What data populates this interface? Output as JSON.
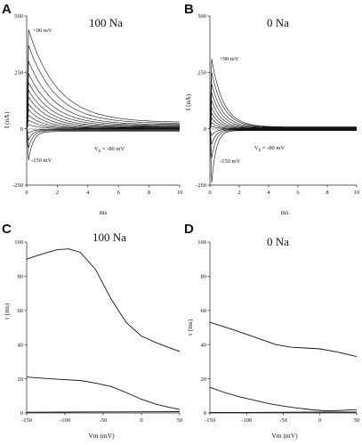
{
  "chart_data": [
    {
      "panel": "A",
      "type": "line",
      "title": "100 Na",
      "xlabel": "ms",
      "ylabel": "I (nA)",
      "xlim": [
        0,
        10
      ],
      "ylim": [
        -250,
        500
      ],
      "xticks": [
        "0",
        "2",
        "4",
        "6",
        "8",
        "10"
      ],
      "yticks": [
        "-250",
        "0",
        "250",
        "500"
      ],
      "annotations": {
        "top": "+90 mV",
        "bottom": "-150 mV",
        "hold": "V",
        "hold_sub": "h",
        "hold_rest": " = -80 mV"
      },
      "series": [
        {
          "peak": 440,
          "tau_ms": 1.9,
          "ss": 28
        },
        {
          "peak": 370,
          "tau_ms": 1.8,
          "ss": 23
        },
        {
          "peak": 300,
          "tau_ms": 1.7,
          "ss": 18
        },
        {
          "peak": 245,
          "tau_ms": 1.6,
          "ss": 15
        },
        {
          "peak": 205,
          "tau_ms": 1.5,
          "ss": 12
        },
        {
          "peak": 170,
          "tau_ms": 1.4,
          "ss": 9
        },
        {
          "peak": 140,
          "tau_ms": 1.3,
          "ss": 7
        },
        {
          "peak": 110,
          "tau_ms": 1.2,
          "ss": 5
        },
        {
          "peak": 85,
          "tau_ms": 1.1,
          "ss": 3
        },
        {
          "peak": 60,
          "tau_ms": 1.0,
          "ss": 2
        },
        {
          "peak": 38,
          "tau_ms": 0.9,
          "ss": 1
        },
        {
          "peak": 18,
          "tau_ms": 0.8,
          "ss": 0
        },
        {
          "peak": -20,
          "tau_ms": 0.3,
          "ss": -3
        },
        {
          "peak": -50,
          "tau_ms": 0.3,
          "ss": -5
        },
        {
          "peak": -85,
          "tau_ms": 0.3,
          "ss": -8
        },
        {
          "peak": -140,
          "tau_ms": 0.3,
          "ss": -12
        }
      ]
    },
    {
      "panel": "B",
      "type": "line",
      "title": "0 Na",
      "xlabel": "ms",
      "ylabel": "I (nA)",
      "xlim": [
        0,
        10
      ],
      "ylim": [
        -250,
        500
      ],
      "xticks": [
        "0",
        "2",
        "4",
        "6",
        "8",
        "10"
      ],
      "yticks": [
        "-250",
        "0",
        "250",
        "500"
      ],
      "annotations": {
        "top": "+90 mV",
        "bottom": "-150 mV",
        "hold": "V",
        "hold_sub": "h",
        "hold_rest": " = -80 mV"
      },
      "series": [
        {
          "peak": 310,
          "tau_ms": 0.8,
          "ss": 8
        },
        {
          "peak": 250,
          "tau_ms": 0.8,
          "ss": 7
        },
        {
          "peak": 200,
          "tau_ms": 0.75,
          "ss": 6
        },
        {
          "peak": 160,
          "tau_ms": 0.7,
          "ss": 5
        },
        {
          "peak": 125,
          "tau_ms": 0.65,
          "ss": 4
        },
        {
          "peak": 95,
          "tau_ms": 0.6,
          "ss": 3
        },
        {
          "peak": 70,
          "tau_ms": 0.55,
          "ss": 2
        },
        {
          "peak": 48,
          "tau_ms": 0.5,
          "ss": 1
        },
        {
          "peak": 28,
          "tau_ms": 0.45,
          "ss": 0
        },
        {
          "peak": 12,
          "tau_ms": 0.4,
          "ss": 0
        },
        {
          "peak": -30,
          "tau_ms": 0.3,
          "ss": -2
        },
        {
          "peak": -70,
          "tau_ms": 0.3,
          "ss": -4
        },
        {
          "peak": -130,
          "tau_ms": 0.3,
          "ss": -6
        },
        {
          "peak": -240,
          "tau_ms": 0.3,
          "ss": -8
        }
      ]
    },
    {
      "panel": "C",
      "type": "line",
      "title": "100 Na",
      "xlabel": "Vm (mV)",
      "ylabel": "τ (ms)",
      "xlim": [
        -150,
        50
      ],
      "ylim": [
        0,
        100
      ],
      "xticks": [
        "-150",
        "-100",
        "-50",
        "0",
        "50"
      ],
      "yticks": [
        "0",
        "20",
        "40",
        "60",
        "80",
        "100"
      ],
      "series": [
        {
          "x": [
            -150,
            -130,
            -110,
            -95,
            -80,
            -60,
            -40,
            -20,
            0,
            20,
            50
          ],
          "y": [
            90,
            93,
            95.5,
            96,
            94,
            84,
            67,
            53,
            45,
            41,
            36
          ]
        },
        {
          "x": [
            -150,
            -120,
            -100,
            -80,
            -60,
            -40,
            -20,
            0,
            20,
            50
          ],
          "y": [
            21,
            20,
            19.5,
            19,
            17.5,
            15.5,
            12,
            8,
            5,
            2
          ]
        },
        {
          "x": [
            -150,
            -100,
            -50,
            0,
            50
          ],
          "y": [
            0.4,
            0.5,
            0.6,
            0.7,
            0.8
          ]
        }
      ]
    },
    {
      "panel": "D",
      "type": "line",
      "title": "0 Na",
      "xlabel": "Vm (mV)",
      "ylabel": "τ (ms)",
      "xlim": [
        -150,
        50
      ],
      "ylim": [
        0,
        100
      ],
      "xticks": [
        "-150",
        "-100",
        "-50",
        "0",
        "50"
      ],
      "yticks": [
        "0",
        "20",
        "40",
        "60",
        "80",
        "100"
      ],
      "series": [
        {
          "x": [
            -150,
            -120,
            -100,
            -80,
            -60,
            -40,
            -20,
            0,
            20,
            50
          ],
          "y": [
            53,
            49,
            46,
            43,
            40,
            38.5,
            38,
            37.5,
            36,
            33
          ]
        },
        {
          "x": [
            -150,
            -130,
            -110,
            -90,
            -70,
            -50,
            -30,
            -10,
            10,
            30,
            50
          ],
          "y": [
            15,
            12,
            9.5,
            7.5,
            5.5,
            4,
            2.8,
            1.8,
            1.2,
            1.5,
            2
          ]
        },
        {
          "x": [
            -150,
            -100,
            -50,
            0,
            50
          ],
          "y": [
            0.3,
            0.3,
            0.4,
            0.5,
            0.5
          ]
        }
      ]
    }
  ]
}
